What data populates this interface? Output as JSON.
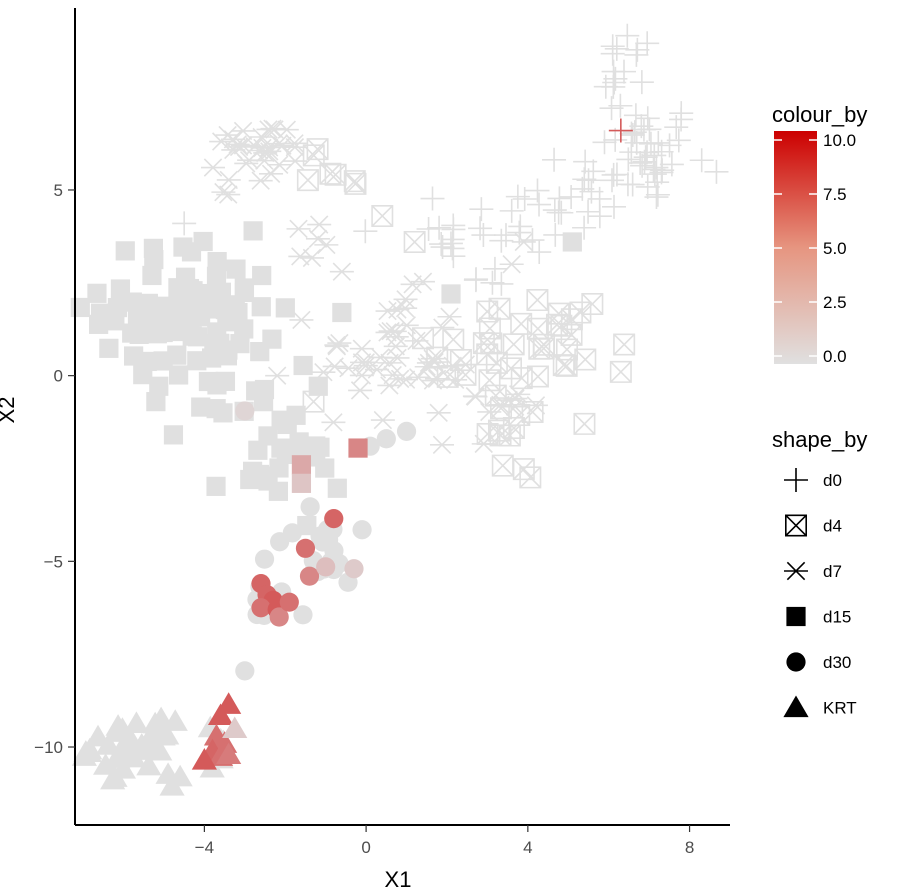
{
  "chart_data": {
    "type": "scatter",
    "xlabel": "X1",
    "ylabel": "X2",
    "xlim": [
      -7.2,
      9.0
    ],
    "ylim": [
      -12.1,
      9.9
    ],
    "x_ticks": [
      -4,
      0,
      4,
      8
    ],
    "x_tick_labels": [
      "−4",
      "0",
      "4",
      "8"
    ],
    "y_ticks": [
      -10,
      -5,
      0,
      5
    ],
    "y_tick_labels": [
      "−10",
      "−5",
      "0",
      "5"
    ],
    "grid": false,
    "legend_placement": "right",
    "colour_legend": {
      "title": "colour_by",
      "low_color": "#e0e0e0",
      "high_color": "#cc0000",
      "range": [
        0,
        10
      ],
      "breaks": [
        0,
        2.5,
        5,
        7.5,
        10
      ],
      "break_labels": [
        "0.0",
        "2.5",
        "5.0",
        "7.5",
        "10.0"
      ]
    },
    "shape_legend": {
      "title": "shape_by",
      "entries": [
        {
          "label": "d0",
          "shape": "plus"
        },
        {
          "label": "d4",
          "shape": "square-cross"
        },
        {
          "label": "d7",
          "shape": "asterisk"
        },
        {
          "label": "d15",
          "shape": "square"
        },
        {
          "label": "d30",
          "shape": "circle"
        },
        {
          "label": "KRT",
          "shape": "triangle"
        }
      ]
    },
    "series": [
      {
        "name": "d0",
        "shape": "plus",
        "clusters": [
          {
            "cx": 7.0,
            "cy": 6.0,
            "sx": 0.6,
            "sy": 0.7,
            "n": 40,
            "value": 0
          },
          {
            "cx": 6.5,
            "cy": 7.8,
            "sx": 0.3,
            "sy": 0.8,
            "n": 16,
            "value": 0
          },
          {
            "cx": 5.2,
            "cy": 5.0,
            "sx": 0.7,
            "sy": 0.6,
            "n": 20,
            "value": 0
          },
          {
            "cx": 3.7,
            "cy": 4.2,
            "sx": 0.8,
            "sy": 0.5,
            "n": 14,
            "value": 0
          },
          {
            "cx": 2.0,
            "cy": 3.7,
            "sx": 0.5,
            "sy": 0.4,
            "n": 12,
            "value": 0
          },
          {
            "cx": 2.8,
            "cy": 2.6,
            "sx": 0.5,
            "sy": 0.3,
            "n": 5,
            "value": 0
          }
        ],
        "points": [
          {
            "x": -4.5,
            "y": 4.1,
            "value": 0
          },
          {
            "x": 6.3,
            "y": 6.6,
            "value": 6
          },
          {
            "x": 6.2,
            "y": 8.8,
            "value": 0
          },
          {
            "x": 8.3,
            "y": 5.8,
            "value": 0
          }
        ]
      },
      {
        "name": "d4",
        "shape": "square-cross",
        "clusters": [
          {
            "cx": 4.3,
            "cy": 0.7,
            "sx": 0.9,
            "sy": 0.9,
            "n": 26,
            "value": 0
          },
          {
            "cx": 3.6,
            "cy": -1.7,
            "sx": 0.6,
            "sy": 0.6,
            "n": 10,
            "value": 0
          },
          {
            "cx": 2.7,
            "cy": 0.8,
            "sx": 0.6,
            "sy": 0.7,
            "n": 10,
            "value": 0
          },
          {
            "cx": -0.8,
            "cy": 5.5,
            "sx": 0.6,
            "sy": 0.5,
            "n": 6,
            "value": 0
          }
        ],
        "points": [
          {
            "x": -1.2,
            "y": 6.1,
            "value": 0
          },
          {
            "x": 0.4,
            "y": 4.3,
            "value": 0
          },
          {
            "x": 1.2,
            "y": 3.6,
            "value": 0
          },
          {
            "x": 5.3,
            "y": 1.7,
            "value": 0
          },
          {
            "x": 6.3,
            "y": 0.1,
            "value": 0
          },
          {
            "x": 5.4,
            "y": -1.3,
            "value": 0
          },
          {
            "x": -1.3,
            "y": -0.7,
            "value": 0
          },
          {
            "x": 3.3,
            "y": 1.8,
            "value": 0
          }
        ]
      },
      {
        "name": "d7",
        "shape": "asterisk",
        "clusters": [
          {
            "cx": -2.6,
            "cy": 6.2,
            "sx": 0.6,
            "sy": 0.3,
            "n": 28,
            "value": 0
          },
          {
            "cx": -2.8,
            "cy": 5.3,
            "sx": 0.4,
            "sy": 0.3,
            "n": 6,
            "value": 0
          },
          {
            "cx": 0.6,
            "cy": 0.6,
            "sx": 0.9,
            "sy": 0.8,
            "n": 40,
            "value": 0
          },
          {
            "cx": 2.4,
            "cy": -0.7,
            "sx": 0.8,
            "sy": 0.6,
            "n": 18,
            "value": 0
          },
          {
            "cx": -1.7,
            "cy": 3.6,
            "sx": 0.3,
            "sy": 0.4,
            "n": 6,
            "value": 0
          }
        ],
        "points": [
          {
            "x": -1.6,
            "y": 1.5,
            "value": 0
          },
          {
            "x": -2.2,
            "y": 0.0,
            "value": 0
          },
          {
            "x": -0.6,
            "y": 2.8,
            "value": 0
          },
          {
            "x": 3.6,
            "y": 3.0,
            "value": 0
          },
          {
            "x": 3.9,
            "y": 3.6,
            "value": 0
          },
          {
            "x": 4.2,
            "y": -0.8,
            "value": 0
          }
        ]
      },
      {
        "name": "d15",
        "shape": "square",
        "clusters": [
          {
            "cx": -4.3,
            "cy": 1.8,
            "sx": 1.1,
            "sy": 0.9,
            "n": 90,
            "value": 0
          },
          {
            "cx": -3.3,
            "cy": -0.7,
            "sx": 0.9,
            "sy": 0.5,
            "n": 18,
            "value": 0
          },
          {
            "cx": -2.2,
            "cy": -2.6,
            "sx": 0.8,
            "sy": 0.5,
            "n": 20,
            "value": 0
          }
        ],
        "points": [
          {
            "x": -1.6,
            "y": -2.4,
            "value": 2.5
          },
          {
            "x": -1.6,
            "y": -2.9,
            "value": 1.2
          },
          {
            "x": -0.2,
            "y": -1.95,
            "value": 4
          },
          {
            "x": -0.6,
            "y": 1.7,
            "value": 0
          },
          {
            "x": 2.1,
            "y": 2.2,
            "value": 0
          },
          {
            "x": 5.1,
            "y": 3.6,
            "value": 0
          },
          {
            "x": -5.2,
            "y": -0.7,
            "value": 0
          }
        ]
      },
      {
        "name": "d30",
        "shape": "circle",
        "clusters": [
          {
            "cx": -1.3,
            "cy": -4.8,
            "sx": 0.7,
            "sy": 0.5,
            "n": 18,
            "value": 0
          },
          {
            "cx": -2.4,
            "cy": -6.1,
            "sx": 0.3,
            "sy": 0.3,
            "n": 8,
            "value": 0
          }
        ],
        "points": [
          {
            "x": -3.0,
            "y": -0.95,
            "value": 0.5
          },
          {
            "x": -0.8,
            "y": -3.85,
            "value": 5.5
          },
          {
            "x": -1.5,
            "y": -4.65,
            "value": 5
          },
          {
            "x": -1.4,
            "y": -5.4,
            "value": 4
          },
          {
            "x": -2.6,
            "y": -5.6,
            "value": 5.5
          },
          {
            "x": -2.45,
            "y": -5.9,
            "value": 5.5
          },
          {
            "x": -2.3,
            "y": -6.05,
            "value": 6
          },
          {
            "x": -2.6,
            "y": -6.25,
            "value": 5
          },
          {
            "x": -2.2,
            "y": -6.3,
            "value": 6
          },
          {
            "x": -2.15,
            "y": -6.5,
            "value": 4
          },
          {
            "x": -1.9,
            "y": -6.1,
            "value": 5
          },
          {
            "x": -1.0,
            "y": -5.15,
            "value": 1.5
          },
          {
            "x": -0.3,
            "y": -5.2,
            "value": 1
          },
          {
            "x": -3.0,
            "y": -7.95,
            "value": 0
          },
          {
            "x": 0.1,
            "y": -1.9,
            "value": 0
          },
          {
            "x": 0.5,
            "y": -1.7,
            "value": 0
          },
          {
            "x": 1.0,
            "y": -1.5,
            "value": 0
          },
          {
            "x": -0.1,
            "y": -4.15,
            "value": 0
          }
        ]
      },
      {
        "name": "KRT",
        "shape": "triangle",
        "clusters": [
          {
            "cx": -5.8,
            "cy": -10.0,
            "sx": 0.5,
            "sy": 0.35,
            "n": 40,
            "value": 0
          },
          {
            "cx": -3.6,
            "cy": -10.0,
            "sx": 0.2,
            "sy": 0.35,
            "n": 6,
            "value": 0
          }
        ],
        "points": [
          {
            "x": -3.4,
            "y": -8.85,
            "value": 6
          },
          {
            "x": -3.6,
            "y": -9.15,
            "value": 6
          },
          {
            "x": -3.7,
            "y": -9.7,
            "value": 5
          },
          {
            "x": -3.5,
            "y": -9.9,
            "value": 5
          },
          {
            "x": -3.8,
            "y": -10.1,
            "value": 5.5
          },
          {
            "x": -3.6,
            "y": -10.25,
            "value": 5
          },
          {
            "x": -4.0,
            "y": -10.35,
            "value": 6
          },
          {
            "x": -3.4,
            "y": -10.2,
            "value": 4.5
          },
          {
            "x": -3.25,
            "y": -9.5,
            "value": 1
          },
          {
            "x": -4.6,
            "y": -10.8,
            "value": 0
          },
          {
            "x": -4.8,
            "y": -11.05,
            "value": 0
          }
        ]
      }
    ]
  }
}
